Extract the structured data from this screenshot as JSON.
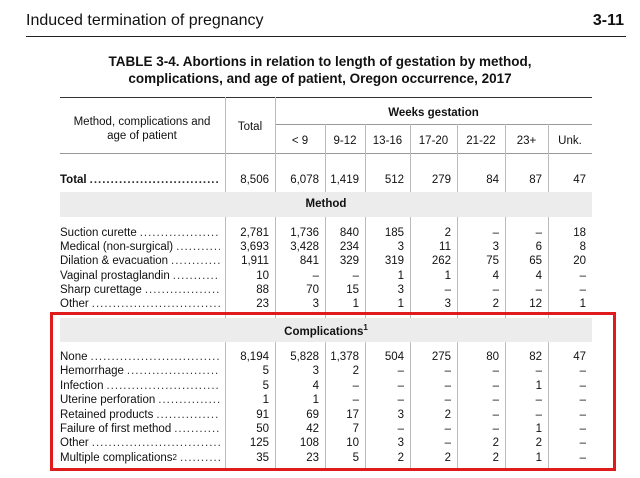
{
  "header": {
    "title": "Induced termination of pregnancy",
    "page": "3-11"
  },
  "table": {
    "caption": [
      "TABLE 3-4.  Abortions in relation to length of gestation by method,",
      "complications, and age of patient, Oregon occurrence, 2017"
    ],
    "label_header": "Method, complications and age of patient",
    "total_header": "Total",
    "group_header": "Weeks gestation",
    "columns": [
      "< 9",
      "9-12",
      "13-16",
      "17-20",
      "21-22",
      "23+",
      "Unk."
    ],
    "total_row": {
      "label": "Total",
      "values": [
        "8,506",
        "6,078",
        "1,419",
        "512",
        "279",
        "84",
        "87",
        "47"
      ]
    },
    "sections": [
      {
        "title": "Method",
        "rows": [
          {
            "label": "Suction curette",
            "values": [
              "2,781",
              "1,736",
              "840",
              "185",
              "2",
              "–",
              "–",
              "18"
            ]
          },
          {
            "label": "Medical (non-surgical)",
            "values": [
              "3,693",
              "3,428",
              "234",
              "3",
              "11",
              "3",
              "6",
              "8"
            ]
          },
          {
            "label": "Dilation & evacuation",
            "values": [
              "1,911",
              "841",
              "329",
              "319",
              "262",
              "75",
              "65",
              "20"
            ]
          },
          {
            "label": "Vaginal prostaglandin",
            "values": [
              "10",
              "–",
              "–",
              "1",
              "1",
              "4",
              "4",
              "–"
            ]
          },
          {
            "label": "Sharp curettage",
            "values": [
              "88",
              "70",
              "15",
              "3",
              "–",
              "–",
              "–",
              "–"
            ]
          },
          {
            "label": "Other",
            "values": [
              "23",
              "3",
              "1",
              "1",
              "3",
              "2",
              "12",
              "1"
            ]
          }
        ]
      },
      {
        "title": "Complications",
        "sup": "1",
        "rows": [
          {
            "label": "None",
            "values": [
              "8,194",
              "5,828",
              "1,378",
              "504",
              "275",
              "80",
              "82",
              "47"
            ]
          },
          {
            "label": "Hemorrhage",
            "values": [
              "5",
              "3",
              "2",
              "–",
              "–",
              "–",
              "–",
              "–"
            ]
          },
          {
            "label": "Infection",
            "values": [
              "5",
              "4",
              "–",
              "–",
              "–",
              "–",
              "1",
              "–"
            ]
          },
          {
            "label": "Uterine perforation",
            "values": [
              "1",
              "1",
              "–",
              "–",
              "–",
              "–",
              "–",
              "–"
            ]
          },
          {
            "label": "Retained products",
            "values": [
              "91",
              "69",
              "17",
              "3",
              "2",
              "–",
              "–",
              "–"
            ]
          },
          {
            "label": "Failure of first method",
            "values": [
              "50",
              "42",
              "7",
              "–",
              "–",
              "–",
              "1",
              "–"
            ]
          },
          {
            "label": "Other",
            "values": [
              "125",
              "108",
              "10",
              "3",
              "–",
              "2",
              "2",
              "–"
            ]
          },
          {
            "label": "Multiple complications",
            "sup": "2",
            "values": [
              "35",
              "23",
              "5",
              "2",
              "2",
              "2",
              "1",
              "–"
            ]
          }
        ]
      }
    ]
  }
}
